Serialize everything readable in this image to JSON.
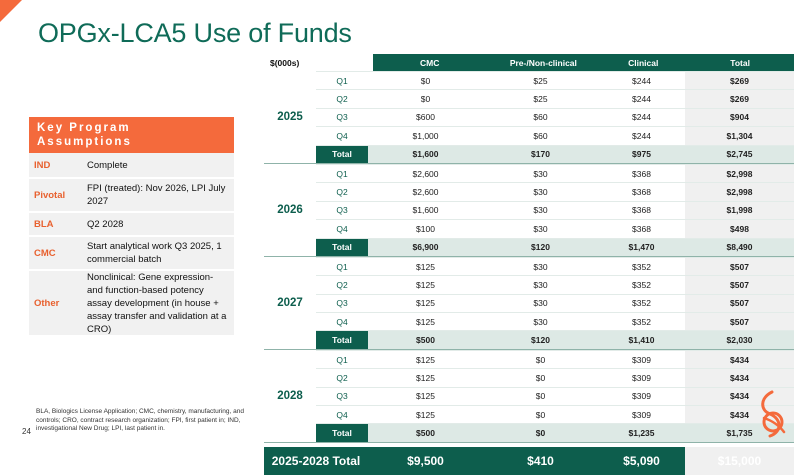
{
  "title": "OPGx-LCA5 Use of Funds",
  "page_number": "24",
  "key_assumptions": {
    "heading": "Key Program Assumptions",
    "rows": [
      {
        "key": "IND",
        "value": "Complete"
      },
      {
        "key": "Pivotal",
        "value": "FPI (treated): Nov 2026, LPI July 2027"
      },
      {
        "key": "BLA",
        "value": "Q2 2028"
      },
      {
        "key": "CMC",
        "value": "Start analytical work Q3 2025, 1 commercial batch"
      },
      {
        "key": "Other",
        "value": "Nonclinical: Gene expression- and function-based potency assay development (in house + assay transfer and validation at a CRO)"
      }
    ]
  },
  "footnote": "BLA, Biologics License Application; CMC, chemistry, manufacturing, and controls; CRO, contract research organization; FPI, first patient in; IND, investigational New Drug; LPI, last patient in.",
  "table": {
    "unit": "$(000s)",
    "columns": [
      "CMC",
      "Pre-/Non-clinical",
      "Clinical",
      "Total"
    ],
    "years": [
      {
        "year": "2025",
        "rows": [
          {
            "label": "Q1",
            "cmc": "$0",
            "pre": "$25",
            "clin": "$244",
            "total": "$269"
          },
          {
            "label": "Q2",
            "cmc": "$0",
            "pre": "$25",
            "clin": "$244",
            "total": "$269"
          },
          {
            "label": "Q3",
            "cmc": "$600",
            "pre": "$60",
            "clin": "$244",
            "total": "$904"
          },
          {
            "label": "Q4",
            "cmc": "$1,000",
            "pre": "$60",
            "clin": "$244",
            "total": "$1,304"
          },
          {
            "label": "Total",
            "cmc": "$1,600",
            "pre": "$170",
            "clin": "$975",
            "total": "$2,745"
          }
        ]
      },
      {
        "year": "2026",
        "rows": [
          {
            "label": "Q1",
            "cmc": "$2,600",
            "pre": "$30",
            "clin": "$368",
            "total": "$2,998"
          },
          {
            "label": "Q2",
            "cmc": "$2,600",
            "pre": "$30",
            "clin": "$368",
            "total": "$2,998"
          },
          {
            "label": "Q3",
            "cmc": "$1,600",
            "pre": "$30",
            "clin": "$368",
            "total": "$1,998"
          },
          {
            "label": "Q4",
            "cmc": "$100",
            "pre": "$30",
            "clin": "$368",
            "total": "$498"
          },
          {
            "label": "Total",
            "cmc": "$6,900",
            "pre": "$120",
            "clin": "$1,470",
            "total": "$8,490"
          }
        ]
      },
      {
        "year": "2027",
        "rows": [
          {
            "label": "Q1",
            "cmc": "$125",
            "pre": "$30",
            "clin": "$352",
            "total": "$507"
          },
          {
            "label": "Q2",
            "cmc": "$125",
            "pre": "$30",
            "clin": "$352",
            "total": "$507"
          },
          {
            "label": "Q3",
            "cmc": "$125",
            "pre": "$30",
            "clin": "$352",
            "total": "$507"
          },
          {
            "label": "Q4",
            "cmc": "$125",
            "pre": "$30",
            "clin": "$352",
            "total": "$507"
          },
          {
            "label": "Total",
            "cmc": "$500",
            "pre": "$120",
            "clin": "$1,410",
            "total": "$2,030"
          }
        ]
      },
      {
        "year": "2028",
        "rows": [
          {
            "label": "Q1",
            "cmc": "$125",
            "pre": "$0",
            "clin": "$309",
            "total": "$434"
          },
          {
            "label": "Q2",
            "cmc": "$125",
            "pre": "$0",
            "clin": "$309",
            "total": "$434"
          },
          {
            "label": "Q3",
            "cmc": "$125",
            "pre": "$0",
            "clin": "$309",
            "total": "$434"
          },
          {
            "label": "Q4",
            "cmc": "$125",
            "pre": "$0",
            "clin": "$309",
            "total": "$434"
          },
          {
            "label": "Total",
            "cmc": "$500",
            "pre": "$0",
            "clin": "$1,235",
            "total": "$1,735"
          }
        ]
      }
    ],
    "grand_total": {
      "label": "2025-2028 Total",
      "cmc": "$9,500",
      "pre": "$410",
      "clin": "$5,090",
      "total": "$15,000"
    }
  },
  "colors": {
    "brand_green": "#0d5e4d",
    "accent_orange": "#f46a3c"
  },
  "icons": [
    "corner-accent-icon",
    "company-logo-icon"
  ]
}
